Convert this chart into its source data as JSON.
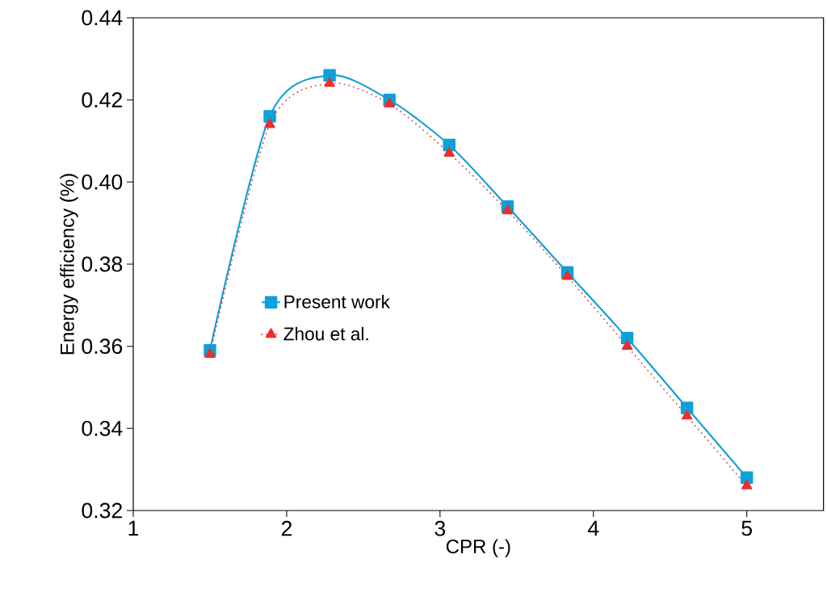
{
  "chart_data": {
    "type": "line",
    "xlabel": "CPR (-)",
    "ylabel": "Energy efficiency (%)",
    "x": [
      1.5,
      1.89,
      2.28,
      2.67,
      3.06,
      3.44,
      3.83,
      4.22,
      4.61,
      5.0
    ],
    "series": [
      {
        "name": "Present work",
        "color": "#0ea0d8",
        "marker": "square",
        "line_style": "solid",
        "values": [
          0.359,
          0.416,
          0.426,
          0.42,
          0.409,
          0.394,
          0.378,
          0.362,
          0.345,
          0.328
        ]
      },
      {
        "name": "Zhou et al.",
        "color": "#e8302f",
        "marker": "triangle",
        "line_style": "dotted",
        "values": [
          0.358,
          0.414,
          0.424,
          0.419,
          0.407,
          0.393,
          0.377,
          0.36,
          0.343,
          0.326
        ]
      }
    ],
    "xlim": [
      1,
      5.5
    ],
    "xticks": [
      1,
      2,
      3,
      4,
      5
    ],
    "ylim": [
      0.32,
      0.44
    ],
    "yticks": [
      {
        "value": 0.32,
        "label": "0.32"
      },
      {
        "value": 0.34,
        "label": "0.34"
      },
      {
        "value": 0.36,
        "label": "0.36"
      },
      {
        "value": 0.38,
        "label": "0.38"
      },
      {
        "value": 0.4,
        "label": "0.40"
      },
      {
        "value": 0.42,
        "label": "0.42"
      },
      {
        "value": 0.44,
        "label": "0.44"
      }
    ],
    "grid": false,
    "legend": "left"
  }
}
